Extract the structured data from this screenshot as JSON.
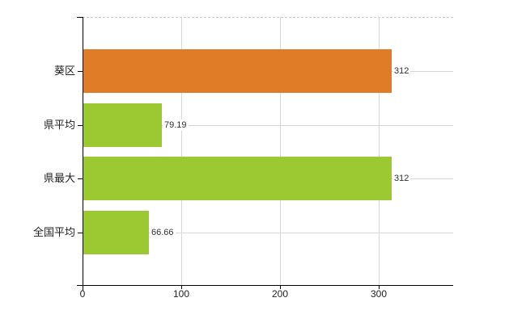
{
  "chart_data": {
    "type": "bar",
    "orientation": "horizontal",
    "title": "",
    "xlabel": "",
    "ylabel": "",
    "legend": "none",
    "grid": "on",
    "categories": [
      "葵区",
      "県平均",
      "県最大",
      "全国平均"
    ],
    "values": [
      312,
      79.19,
      312,
      66.66
    ],
    "value_labels": [
      "312",
      "79.19",
      "312",
      "66.66"
    ],
    "bar_colors": [
      "#e07c28",
      "#9cc832",
      "#9cc832",
      "#9cc832"
    ],
    "highlight_color": "#e07c28",
    "base_color": "#9cc832",
    "xlim": [
      0,
      375
    ],
    "x_ticks": [
      0,
      100,
      200,
      300
    ],
    "x_tick_labels": [
      "0",
      "100",
      "200",
      "300"
    ]
  },
  "colors": {
    "axis": "#000000",
    "gridline": "#d6d6d6",
    "top_border": "#c9c9c9",
    "text": "#222222",
    "value_text": "#333333",
    "background": "#ffffff"
  }
}
